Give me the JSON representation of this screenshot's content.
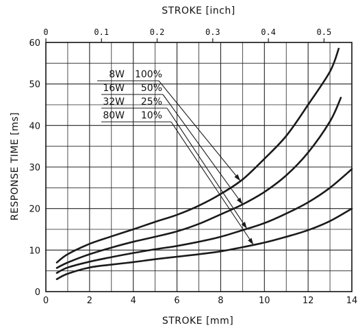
{
  "chart_data": {
    "type": "line",
    "title": "",
    "xlabel": "STROKE [mm]",
    "x2label": "STROKE [inch]",
    "ylabel": "RESPONSE TIME [ms]",
    "xlim": [
      0,
      14
    ],
    "x2lim": [
      0,
      0.55
    ],
    "ylim": [
      0,
      60
    ],
    "xticks": [
      "0",
      "2",
      "4",
      "6",
      "8",
      "10",
      "12",
      "14"
    ],
    "x2ticks": [
      "0",
      "0.1",
      "0.2",
      "0.3",
      "0.4",
      "0.5"
    ],
    "yticks": [
      "0",
      "10",
      "20",
      "30",
      "40",
      "50",
      "60"
    ],
    "grid": true,
    "series": [
      {
        "name": "8W 100%",
        "label_parts": [
          "8W",
          "100%"
        ],
        "x": [
          0.5,
          1,
          2,
          3,
          4,
          5,
          6,
          7,
          8,
          9,
          10,
          11,
          12,
          13,
          13.4
        ],
        "y": [
          7,
          9,
          11.5,
          13.3,
          15,
          16.8,
          18.5,
          20.7,
          23.5,
          27,
          32,
          37.5,
          45,
          53,
          58.5
        ]
      },
      {
        "name": "16W 50%",
        "label_parts": [
          "16W",
          "50%"
        ],
        "x": [
          0.5,
          1,
          2,
          3,
          4,
          5,
          6,
          7,
          8,
          9,
          10,
          11,
          12,
          13,
          13.5
        ],
        "y": [
          5.7,
          7,
          9,
          10.6,
          12,
          13.2,
          14.5,
          16.3,
          18.6,
          21,
          24,
          28,
          33.5,
          41,
          46.7
        ]
      },
      {
        "name": "32W 25%",
        "label_parts": [
          "32W",
          "25%"
        ],
        "x": [
          0.5,
          1,
          2,
          3,
          4,
          5,
          6,
          7,
          8,
          9,
          10,
          11,
          12,
          13,
          14
        ],
        "y": [
          4.5,
          5.8,
          7.2,
          8.3,
          9.3,
          10.2,
          11,
          12,
          13.2,
          14.8,
          16.5,
          18.8,
          21.5,
          25,
          29.5
        ]
      },
      {
        "name": "80W 10%",
        "label_parts": [
          "80W",
          "10%"
        ],
        "x": [
          0.5,
          1,
          2,
          3,
          4,
          5,
          6,
          7,
          8,
          9,
          10,
          11,
          12,
          13,
          14
        ],
        "y": [
          3,
          4.3,
          5.8,
          6.5,
          7.1,
          7.8,
          8.4,
          9,
          9.7,
          10.7,
          11.8,
          13.2,
          14.8,
          17,
          20
        ]
      }
    ],
    "annotations": [
      {
        "series": "8W 100%",
        "arrow_to_x": 8.9
      },
      {
        "series": "16W 50%",
        "arrow_to_x": 9.0
      },
      {
        "series": "32W 25%",
        "arrow_to_x": 9.2
      },
      {
        "series": "80W 10%",
        "arrow_to_x": 9.5
      }
    ],
    "legend": "upper-left, arrows to curves",
    "colors": {
      "line": "#1a1a1a",
      "grid": "#222222"
    }
  }
}
